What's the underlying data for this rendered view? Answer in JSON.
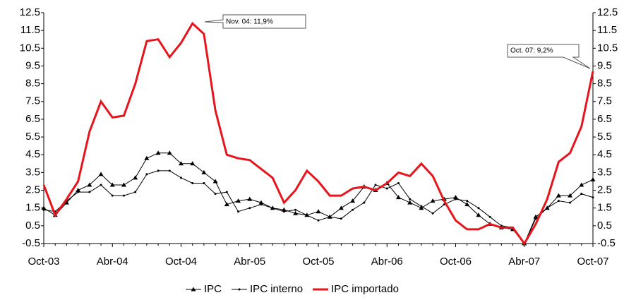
{
  "chart_data": {
    "type": "line",
    "categories": [
      "Oct-03",
      null,
      null,
      null,
      null,
      null,
      "Abr-04",
      null,
      null,
      null,
      null,
      null,
      "Oct-04",
      null,
      null,
      null,
      null,
      null,
      "Abr-05",
      null,
      null,
      null,
      null,
      null,
      "Oct-05",
      null,
      null,
      null,
      null,
      null,
      "Abr-06",
      null,
      null,
      null,
      null,
      null,
      "Oct-06",
      null,
      null,
      null,
      null,
      null,
      "Abr-07",
      null,
      null,
      null,
      null,
      null,
      "Oct-07"
    ],
    "series": [
      {
        "name": "IPC",
        "color": "#000000",
        "marker": "triangle",
        "values": [
          1.5,
          1.1,
          1.8,
          2.5,
          2.8,
          3.4,
          2.8,
          2.8,
          3.2,
          4.3,
          4.6,
          4.6,
          4.0,
          4.0,
          3.5,
          3.0,
          1.7,
          1.9,
          2.0,
          1.8,
          1.5,
          1.4,
          1.2,
          1.1,
          1.3,
          1.0,
          1.5,
          1.9,
          2.7,
          2.5,
          2.9,
          2.1,
          1.8,
          1.5,
          1.9,
          2.0,
          2.1,
          1.7,
          1.1,
          0.6,
          0.4,
          0.3,
          -0.5,
          1.0,
          1.5,
          2.2,
          2.2,
          2.8,
          3.1
        ]
      },
      {
        "name": "IPC interno",
        "color": "#000000",
        "marker": "dot",
        "values": [
          1.4,
          1.3,
          1.9,
          2.4,
          2.4,
          2.8,
          2.2,
          2.2,
          2.4,
          3.4,
          3.6,
          3.6,
          3.2,
          2.9,
          2.9,
          2.3,
          2.4,
          1.3,
          1.5,
          1.7,
          1.5,
          1.3,
          1.4,
          1.1,
          0.8,
          1.0,
          0.9,
          1.4,
          1.8,
          2.8,
          2.6,
          2.9,
          2.0,
          1.6,
          1.2,
          1.7,
          2.0,
          1.9,
          1.5,
          1.0,
          0.5,
          0.4,
          -0.5,
          0.9,
          1.5,
          1.9,
          1.8,
          2.3,
          2.1
        ]
      },
      {
        "name": "IPC importado",
        "color": "#e8141b",
        "marker": "none",
        "values": [
          2.8,
          1.1,
          2.0,
          3.0,
          5.8,
          7.5,
          6.6,
          6.7,
          8.5,
          10.9,
          11.0,
          10.0,
          10.8,
          11.9,
          11.3,
          7.0,
          4.5,
          4.3,
          4.2,
          3.7,
          3.2,
          1.8,
          2.5,
          3.6,
          3.0,
          2.2,
          2.2,
          2.6,
          2.7,
          2.5,
          2.9,
          3.5,
          3.3,
          4.0,
          3.3,
          1.9,
          0.8,
          0.3,
          0.3,
          0.6,
          0.4,
          0.4,
          -0.5,
          0.6,
          2.0,
          4.1,
          4.6,
          6.1,
          9.2
        ]
      }
    ],
    "ylim": [
      -0.5,
      12.5
    ],
    "yticks": [
      -0.5,
      0.5,
      1.5,
      2.5,
      3.5,
      4.5,
      5.5,
      6.5,
      7.5,
      8.5,
      9.5,
      10.5,
      11.5,
      12.5
    ],
    "y2lim": [
      -0.5,
      12.5
    ],
    "y2ticks": [
      -0.5,
      0.5,
      1.5,
      2.5,
      3.5,
      4.5,
      5.5,
      6.5,
      7.5,
      8.5,
      9.5,
      10.5,
      11.5,
      12.5
    ],
    "annotations": [
      "Nov. 04: 11,9%",
      "Oct. 07: 9,2%"
    ],
    "legend": "bottom"
  }
}
